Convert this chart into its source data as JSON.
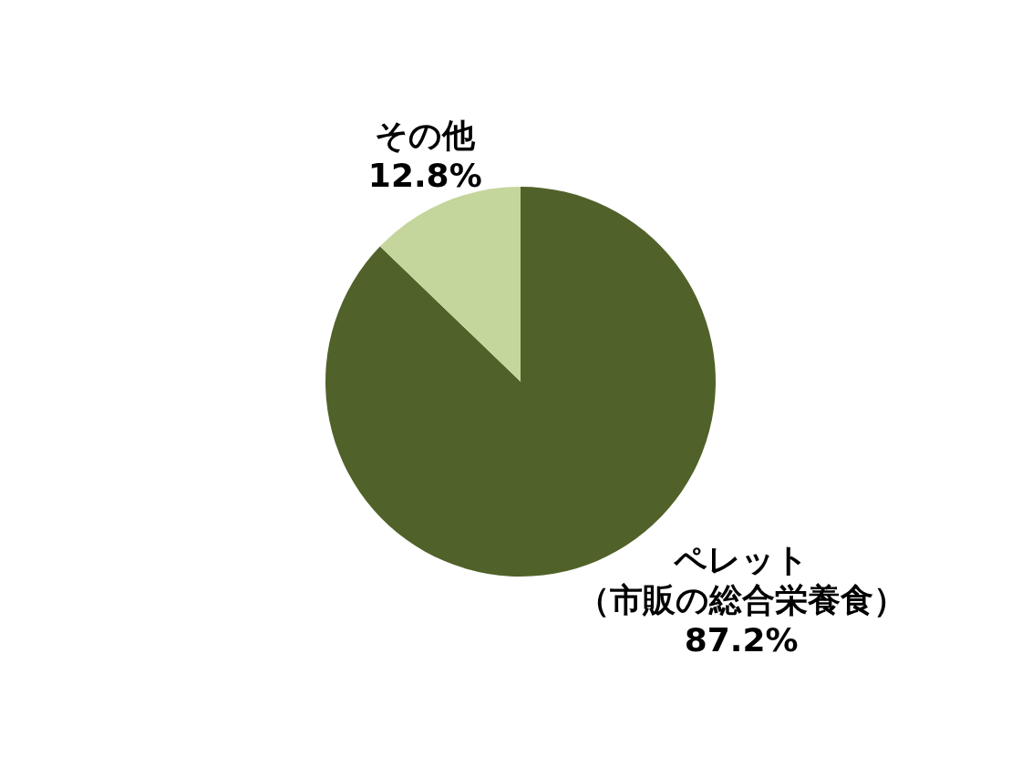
{
  "chart_data": {
    "type": "pie",
    "categories": [
      "ペレット（市販の総合栄養食）",
      "その他"
    ],
    "values": [
      87.2,
      12.8
    ],
    "colors": [
      "#506229",
      "#c4d69b"
    ],
    "value_labels": [
      "87.2%",
      "12.8%"
    ]
  }
}
